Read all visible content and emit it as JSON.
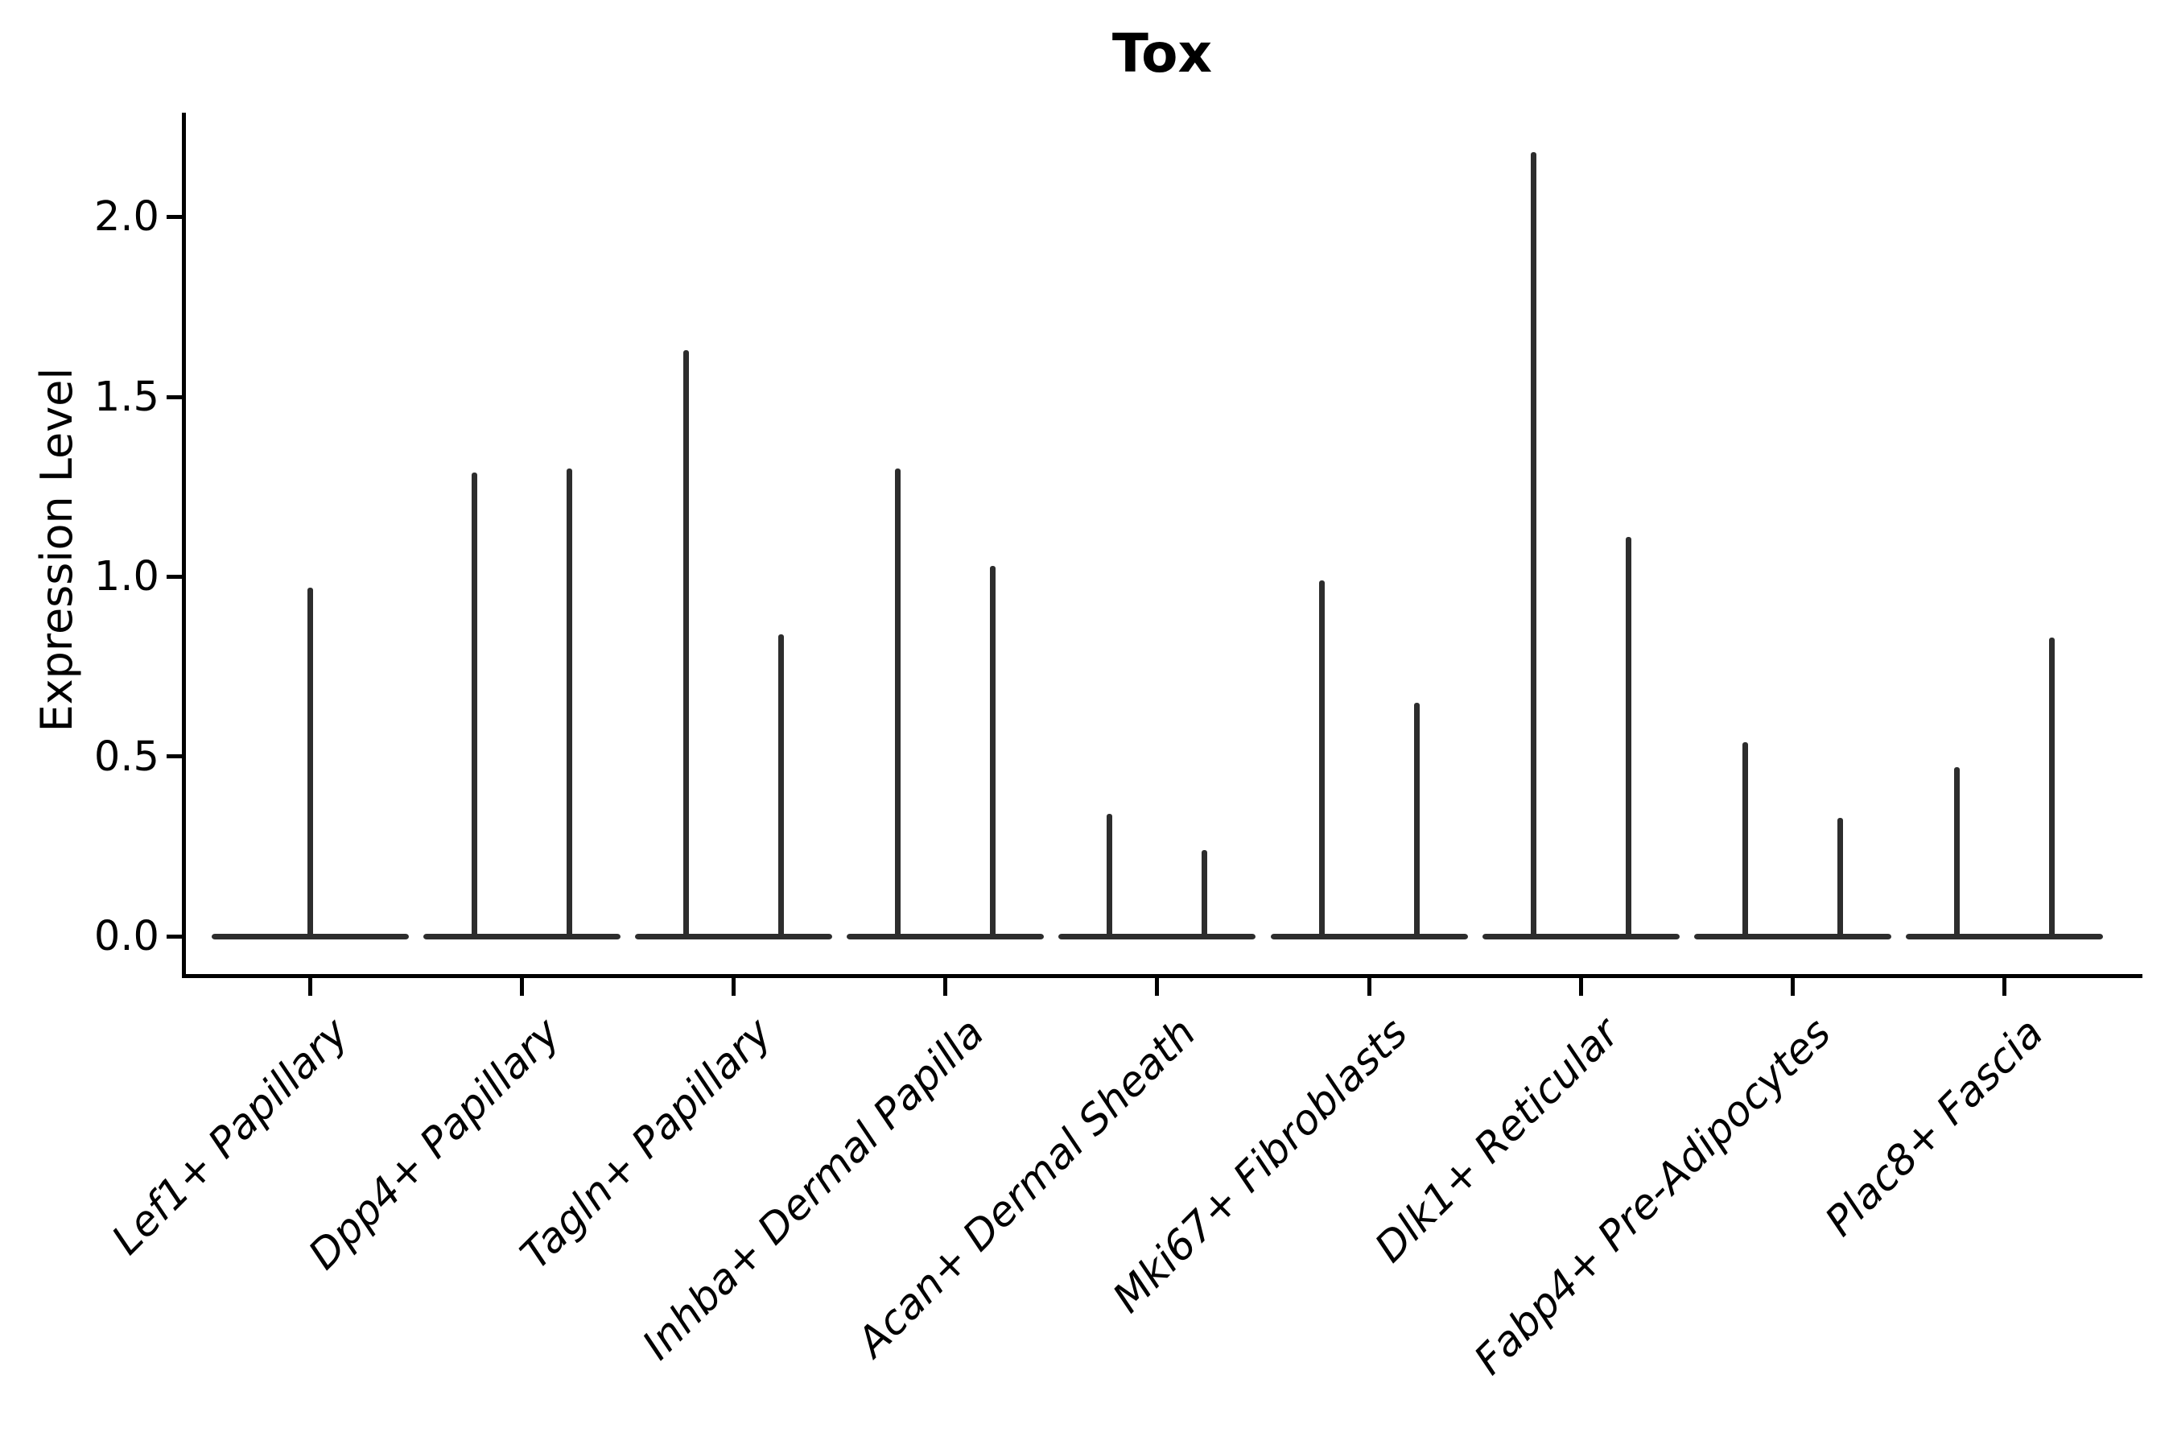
{
  "title": "Tox",
  "ylabel": "Expression Level",
  "chart_data": {
    "type": "violin",
    "title": "Tox",
    "xlabel": "",
    "ylabel": "Expression Level",
    "ylim": [
      0,
      2.29
    ],
    "yticks": [
      0,
      0.5,
      1,
      1.5,
      2
    ],
    "ytick_labels": [
      "0.0",
      "0.5",
      "1.0",
      "1.5",
      "2.0"
    ],
    "grid": false,
    "legend": null,
    "ink_color": "#2d2d2d",
    "axis_color": "#000000",
    "categories": [
      "Lef1+ Papillary",
      "Dpp4+ Papillary",
      "Tagln+ Papillary",
      "Inhba+ Dermal Papilla",
      "Acan+ Dermal Sheath",
      "Mki67+ Fibroblasts",
      "Dlk1+ Reticular",
      "Fabp4+ Pre-Adipocytes",
      "Plac8+ Fascia"
    ],
    "violins": [
      {
        "category": "Lef1+ Papillary",
        "spikes": [
          {
            "position": "center",
            "max": 0.97
          }
        ]
      },
      {
        "category": "Dpp4+ Papillary",
        "spikes": [
          {
            "position": "left",
            "max": 1.29
          },
          {
            "position": "right",
            "max": 1.3
          }
        ]
      },
      {
        "category": "Tagln+ Papillary",
        "spikes": [
          {
            "position": "left",
            "max": 1.63
          },
          {
            "position": "right",
            "max": 0.84
          }
        ]
      },
      {
        "category": "Inhba+ Dermal Papilla",
        "spikes": [
          {
            "position": "left",
            "max": 1.3
          },
          {
            "position": "right",
            "max": 1.03
          }
        ]
      },
      {
        "category": "Acan+ Dermal Sheath",
        "spikes": [
          {
            "position": "left",
            "max": 0.34
          },
          {
            "position": "right",
            "max": 0.24
          }
        ]
      },
      {
        "category": "Mki67+ Fibroblasts",
        "spikes": [
          {
            "position": "left",
            "max": 0.99
          },
          {
            "position": "right",
            "max": 0.65
          }
        ]
      },
      {
        "category": "Dlk1+ Reticular",
        "spikes": [
          {
            "position": "left",
            "max": 2.18
          },
          {
            "position": "right",
            "max": 1.11
          }
        ]
      },
      {
        "category": "Fabp4+ Pre-Adipocytes",
        "spikes": [
          {
            "position": "left",
            "max": 0.54
          },
          {
            "position": "right",
            "max": 0.33
          }
        ]
      },
      {
        "category": "Plac8+ Fascia",
        "spikes": [
          {
            "position": "left",
            "max": 0.47
          },
          {
            "position": "right",
            "max": 0.83
          }
        ]
      }
    ]
  }
}
